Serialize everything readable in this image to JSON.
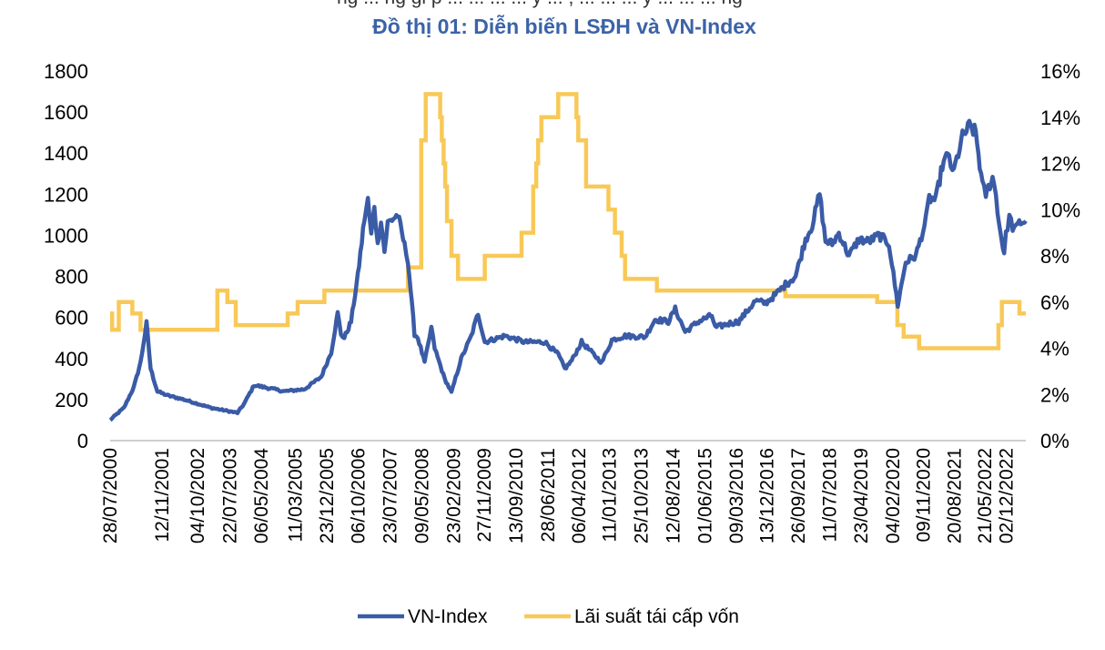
{
  "header": {
    "cut_text": "ng ... ng gi p ... ... ... ... y ... , ... ... ... y ... ... ... ng",
    "title": "Đồ thị 01: Diễn biến LSĐH và VN-Index"
  },
  "colors": {
    "vnindex": "#3a5ba6",
    "rate": "#f8c958",
    "title": "#3b63a8"
  },
  "legend": {
    "vnindex_label": "VN-Index",
    "rate_label": "Lãi suất tái cấp vốn"
  },
  "chart_data": {
    "type": "line",
    "title": "Đồ thị 01: Diễn biến LSĐH và VN-Index",
    "x_start": "28/07/2000",
    "x_end": "31/05/2023",
    "x_tick_labels": [
      "28/07/2000",
      "12/11/2001",
      "04/10/2002",
      "22/07/2003",
      "06/05/2004",
      "11/03/2005",
      "23/12/2005",
      "06/10/2006",
      "23/07/2007",
      "09/05/2008",
      "23/02/2009",
      "27/11/2009",
      "13/09/2010",
      "28/06/2011",
      "06/04/2012",
      "11/01/2013",
      "25/10/2013",
      "12/08/2014",
      "01/06/2015",
      "09/03/2016",
      "13/12/2016",
      "26/09/2017",
      "11/07/2018",
      "23/04/2019",
      "04/02/2020",
      "09/11/2020",
      "20/08/2021",
      "21/05/2022",
      "02/12/2022"
    ],
    "y_left": {
      "ylim": [
        0,
        1800
      ],
      "ticks": [
        0,
        200,
        400,
        600,
        800,
        1000,
        1200,
        1400,
        1600,
        1800
      ]
    },
    "y_right": {
      "ylim": [
        0,
        16
      ],
      "ticks": [
        "0%",
        "2%",
        "4%",
        "6%",
        "8%",
        "10%",
        "12%",
        "14%",
        "16%"
      ]
    },
    "legend_position": "bottom",
    "series": [
      {
        "name": "VN-Index",
        "axis": "left",
        "points": [
          [
            "28/07/2000",
            100
          ],
          [
            "01/12/2000",
            160
          ],
          [
            "01/03/2001",
            260
          ],
          [
            "01/05/2001",
            380
          ],
          [
            "25/06/2001",
            571
          ],
          [
            "01/08/2001",
            350
          ],
          [
            "01/10/2001",
            240
          ],
          [
            "01/01/2002",
            220
          ],
          [
            "01/06/2002",
            200
          ],
          [
            "01/10/2002",
            180
          ],
          [
            "01/02/2003",
            160
          ],
          [
            "01/10/2003",
            135
          ],
          [
            "01/12/2003",
            180
          ],
          [
            "01/03/2004",
            270
          ],
          [
            "01/06/2004",
            260
          ],
          [
            "01/12/2004",
            240
          ],
          [
            "01/06/2005",
            250
          ],
          [
            "01/11/2005",
            310
          ],
          [
            "01/02/2006",
            430
          ],
          [
            "01/04/2006",
            620
          ],
          [
            "01/05/2006",
            520
          ],
          [
            "01/06/2006",
            500
          ],
          [
            "01/08/2006",
            580
          ],
          [
            "01/10/2006",
            800
          ],
          [
            "01/12/2006",
            1080
          ],
          [
            "01/01/2007",
            1170
          ],
          [
            "01/02/2007",
            1000
          ],
          [
            "01/03/2007",
            1150
          ],
          [
            "01/04/2007",
            950
          ],
          [
            "01/05/2007",
            1080
          ],
          [
            "01/06/2007",
            920
          ],
          [
            "01/07/2007",
            1060
          ],
          [
            "01/10/2007",
            1100
          ],
          [
            "01/12/2007",
            950
          ],
          [
            "01/01/2008",
            880
          ],
          [
            "01/03/2008",
            520
          ],
          [
            "01/04/2008",
            500
          ],
          [
            "01/06/2008",
            380
          ],
          [
            "01/07/2008",
            460
          ],
          [
            "01/08/2008",
            550
          ],
          [
            "01/09/2008",
            450
          ],
          [
            "01/12/2008",
            300
          ],
          [
            "01/02/2009",
            235
          ],
          [
            "01/05/2009",
            400
          ],
          [
            "01/08/2009",
            510
          ],
          [
            "01/10/2009",
            620
          ],
          [
            "01/12/2009",
            480
          ],
          [
            "01/06/2010",
            510
          ],
          [
            "01/12/2010",
            480
          ],
          [
            "01/06/2011",
            480
          ],
          [
            "01/10/2011",
            420
          ],
          [
            "01/12/2011",
            350
          ],
          [
            "01/02/2012",
            390
          ],
          [
            "01/05/2012",
            480
          ],
          [
            "01/11/2012",
            380
          ],
          [
            "01/02/2013",
            490
          ],
          [
            "01/06/2013",
            510
          ],
          [
            "01/12/2013",
            505
          ],
          [
            "01/03/2014",
            590
          ],
          [
            "01/07/2014",
            580
          ],
          [
            "01/09/2014",
            640
          ],
          [
            "01/12/2014",
            530
          ],
          [
            "01/04/2015",
            580
          ],
          [
            "01/08/2015",
            610
          ],
          [
            "01/09/2015",
            550
          ],
          [
            "01/01/2016",
            570
          ],
          [
            "01/04/2016",
            580
          ],
          [
            "01/09/2016",
            680
          ],
          [
            "01/12/2016",
            670
          ],
          [
            "01/03/2017",
            710
          ],
          [
            "01/06/2017",
            760
          ],
          [
            "01/09/2017",
            800
          ],
          [
            "01/12/2017",
            980
          ],
          [
            "01/02/2018",
            1050
          ],
          [
            "09/04/2018",
            1204
          ],
          [
            "01/06/2018",
            970
          ],
          [
            "01/08/2018",
            960
          ],
          [
            "01/10/2018",
            1010
          ],
          [
            "01/01/2019",
            900
          ],
          [
            "01/04/2019",
            980
          ],
          [
            "01/07/2019",
            970
          ],
          [
            "01/10/2019",
            1000
          ],
          [
            "01/01/2020",
            960
          ],
          [
            "20/03/2020",
            660
          ],
          [
            "01/06/2020",
            870
          ],
          [
            "01/09/2020",
            900
          ],
          [
            "01/12/2020",
            1070
          ],
          [
            "01/01/2021",
            1180
          ],
          [
            "01/03/2021",
            1170
          ],
          [
            "01/05/2021",
            1340
          ],
          [
            "01/07/2021",
            1400
          ],
          [
            "01/08/2021",
            1290
          ],
          [
            "01/11/2021",
            1480
          ],
          [
            "01/01/2022",
            1530
          ],
          [
            "01/03/2022",
            1500
          ],
          [
            "01/05/2022",
            1240
          ],
          [
            "01/06/2022",
            1200
          ],
          [
            "01/08/2022",
            1280
          ],
          [
            "01/09/2022",
            1200
          ],
          [
            "01/10/2022",
            1050
          ],
          [
            "15/11/2022",
            911
          ],
          [
            "01/12/2022",
            1000
          ],
          [
            "01/01/2023",
            1090
          ],
          [
            "01/02/2023",
            1040
          ],
          [
            "01/03/2023",
            1030
          ],
          [
            "01/04/2023",
            1060
          ],
          [
            "31/05/2023",
            1070
          ]
        ]
      },
      {
        "name": "Lãi suất tái cấp vốn",
        "axis": "right",
        "step": true,
        "points": [
          [
            "28/07/2000",
            5.5
          ],
          [
            "15/08/2000",
            4.8
          ],
          [
            "15/10/2000",
            6.0
          ],
          [
            "15/02/2001",
            5.5
          ],
          [
            "01/05/2001",
            4.8
          ],
          [
            "01/04/2003",
            6.5
          ],
          [
            "01/07/2003",
            6.0
          ],
          [
            "15/09/2003",
            5.0
          ],
          [
            "01/01/2005",
            5.5
          ],
          [
            "01/04/2005",
            6.0
          ],
          [
            "01/12/2005",
            6.5
          ],
          [
            "01/01/2008",
            7.5
          ],
          [
            "01/02/2008",
            7.5
          ],
          [
            "01/05/2008",
            13.0
          ],
          [
            "11/06/2008",
            15.0
          ],
          [
            "21/10/2008",
            14.0
          ],
          [
            "05/11/2008",
            13.0
          ],
          [
            "21/11/2008",
            12.0
          ],
          [
            "05/12/2008",
            11.0
          ],
          [
            "22/12/2008",
            9.5
          ],
          [
            "01/02/2009",
            8.0
          ],
          [
            "01/04/2009",
            7.0
          ],
          [
            "01/12/2009",
            8.0
          ],
          [
            "01/11/2010",
            9.0
          ],
          [
            "15/02/2011",
            11.0
          ],
          [
            "15/03/2011",
            12.0
          ],
          [
            "01/04/2011",
            13.0
          ],
          [
            "01/05/2011",
            14.0
          ],
          [
            "01/10/2011",
            15.0
          ],
          [
            "15/03/2012",
            14.0
          ],
          [
            "01/04/2012",
            13.0
          ],
          [
            "11/06/2012",
            11.0
          ],
          [
            "01/01/2013",
            10.0
          ],
          [
            "01/03/2013",
            9.0
          ],
          [
            "01/05/2013",
            8.0
          ],
          [
            "01/06/2013",
            7.0
          ],
          [
            "18/03/2014",
            6.5
          ],
          [
            "01/06/2017",
            6.25
          ],
          [
            "15/09/2019",
            6.0
          ],
          [
            "17/03/2020",
            5.0
          ],
          [
            "13/05/2020",
            4.5
          ],
          [
            "01/10/2020",
            4.0
          ],
          [
            "23/09/2022",
            5.0
          ],
          [
            "25/10/2022",
            6.0
          ],
          [
            "03/04/2023",
            5.5
          ],
          [
            "31/05/2023",
            5.5
          ]
        ]
      }
    ]
  }
}
